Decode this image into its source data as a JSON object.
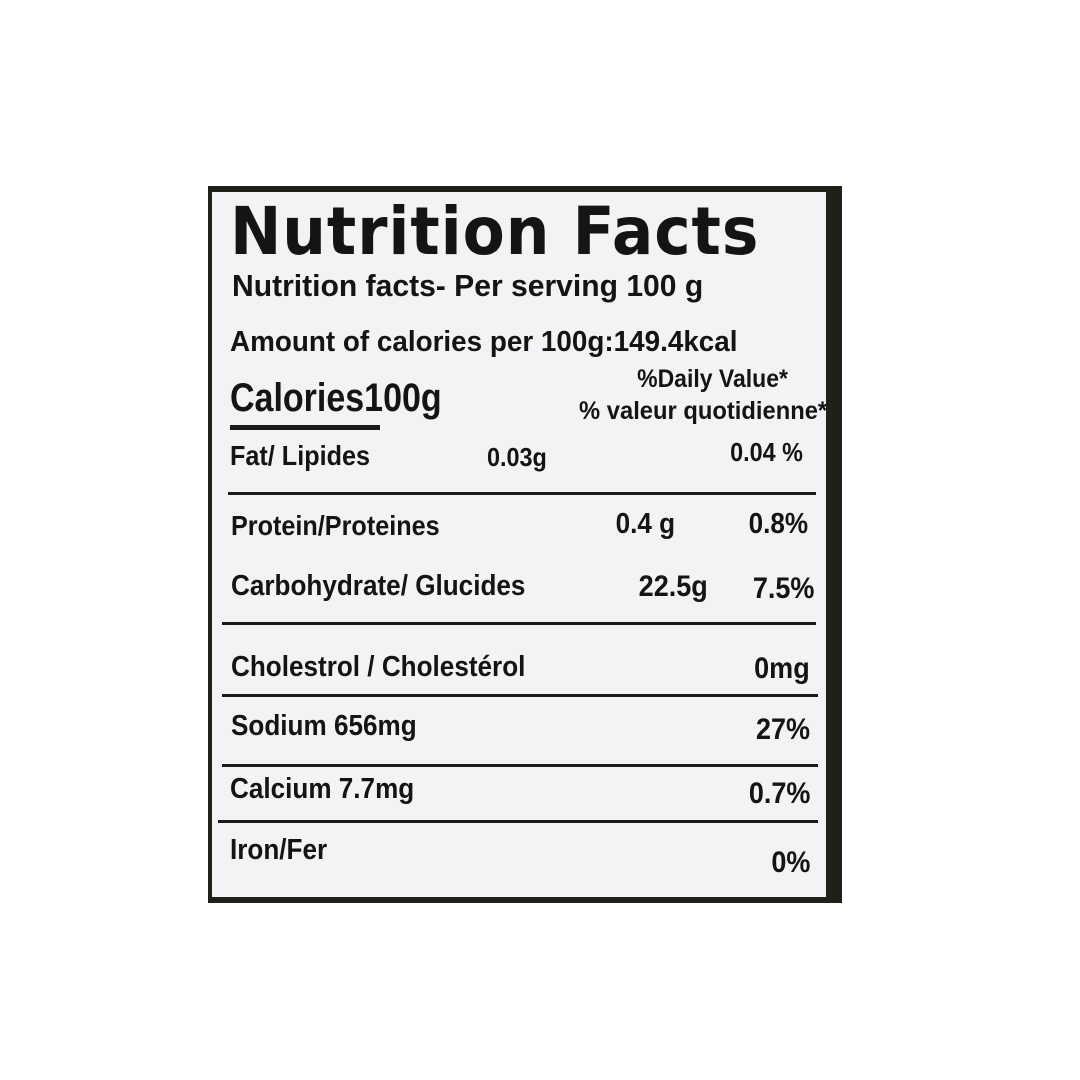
{
  "title": "Nutrition Facts",
  "serving": "Nutrition facts- Per serving 100 g",
  "calories_amount": "Amount of calories per 100g:149.4kcal",
  "calories_heading": "Calories100g",
  "daily_value_en": "%Daily Value*",
  "daily_value_fr": "% valeur quotidienne*",
  "nutrients": [
    {
      "name": "Fat/ Lipides",
      "amount": "0.03g",
      "dv": "0.04 %"
    },
    {
      "name": "Protein/Proteines",
      "amount": "0.4 g",
      "dv": "0.8%"
    },
    {
      "name": "Carbohydrate/ Glucides",
      "amount": "22.5g",
      "dv": "7.5%"
    },
    {
      "name": "Cholestrol / Cholestérol",
      "amount": "",
      "dv": "0mg"
    },
    {
      "name": "Sodium 656mg",
      "amount": "",
      "dv": "27%"
    },
    {
      "name": "Calcium 7.7mg",
      "amount": "",
      "dv": "0.7%"
    },
    {
      "name": "Iron/Fer",
      "amount": "",
      "dv": "0%"
    }
  ],
  "colors": {
    "label_background": "#f3f2f5",
    "text": "#141414",
    "border": "#1e2118"
  }
}
